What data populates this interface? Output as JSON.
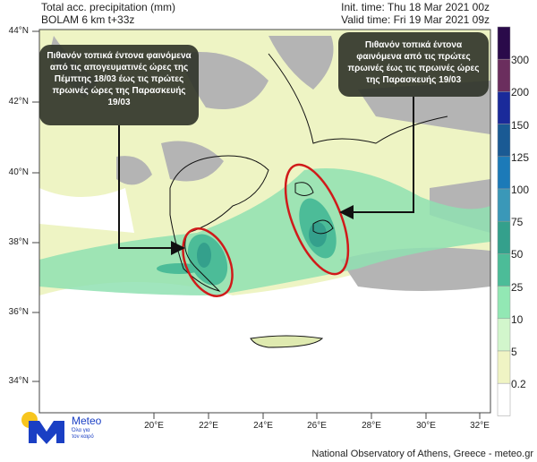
{
  "header": {
    "title": "Total acc. precipitation (mm)",
    "model": "BOLAM 6 km t+33z",
    "init_time": "Init. time: Thu 18 Mar 2021 00z",
    "valid_time": "Valid time: Fri 19 Mar 2021 09z"
  },
  "lat_labels": [
    "44°N",
    "42°N",
    "40°N",
    "38°N",
    "36°N",
    "34°N"
  ],
  "lon_labels": [
    "20°E",
    "22°E",
    "24°E",
    "26°E",
    "28°E",
    "30°E",
    "32°E"
  ],
  "colorbar": {
    "labels": [
      "300",
      "200",
      "150",
      "125",
      "100",
      "75",
      "50",
      "25",
      "10",
      "5",
      "0.2"
    ],
    "colors": [
      "#2a0a4a",
      "#6b2e5e",
      "#1a2a9a",
      "#1a5a94",
      "#1c7ab8",
      "#3a98b8",
      "#34a08c",
      "#4cbc98",
      "#92e8b4",
      "#d2f6cc",
      "#f0f4c4",
      "#ffffff"
    ]
  },
  "annotations": {
    "left": "Πιθανόν τοπικά έντονα φαινόμενα από τις απογευματινές ώρες της Πέμπτης 18/03 έως τις πρώτες πρωινές ώρες της Παρασκευής 19/03",
    "right": "Πιθανόν τοπικά έντονα φαινόμενα από τις πρώτες πρωινές έως τις πρωινές ώρες της Παρασκευής 19/03"
  },
  "logo": {
    "name": "Meteo",
    "tagline": "Όλα για τον καιρό"
  },
  "footer": "National Observatory of Athens, Greece - meteo.gr",
  "colors": {
    "land_gray": "#b4b4b4",
    "ellipse": "#d01a1a"
  }
}
